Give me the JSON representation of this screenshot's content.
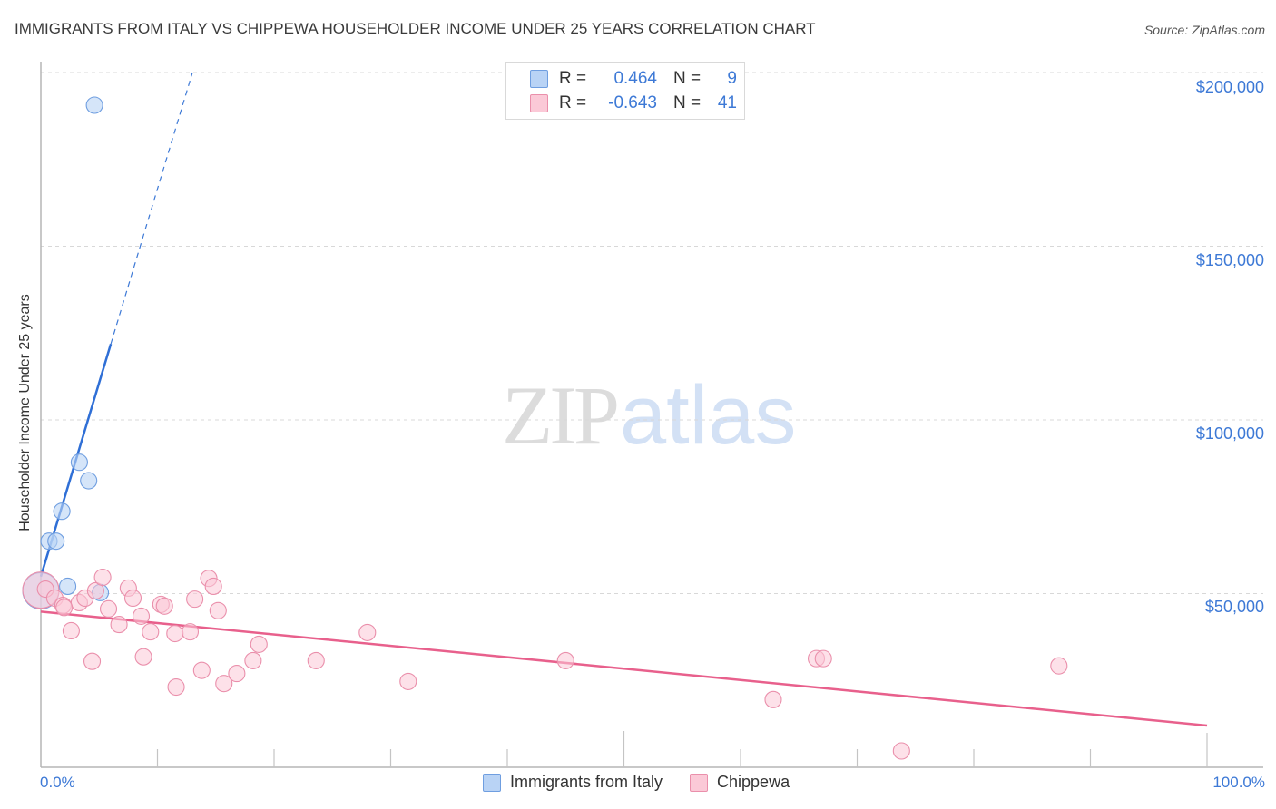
{
  "header": {
    "title": "IMMIGRANTS FROM ITALY VS CHIPPEWA HOUSEHOLDER INCOME UNDER 25 YEARS CORRELATION CHART",
    "source": "Source: ZipAtlas.com"
  },
  "watermark": {
    "zip": "ZIP",
    "atlas": "atlas"
  },
  "legend_top": {
    "rows": [
      {
        "swatch_color": "#b9d3f5",
        "swatch_border": "#6f9ee0",
        "r_label": "R =",
        "r_value": "0.464",
        "n_label": "N =",
        "n_value": "9"
      },
      {
        "swatch_color": "#fbc9d7",
        "swatch_border": "#ea8fab",
        "r_label": "R =",
        "r_value": "-0.643",
        "n_label": "N =",
        "n_value": "41"
      }
    ]
  },
  "legend_bottom": {
    "items": [
      {
        "label": "Immigrants from Italy",
        "swatch_color": "#b9d3f5",
        "swatch_border": "#6f9ee0"
      },
      {
        "label": "Chippewa",
        "swatch_color": "#fbc9d7",
        "swatch_border": "#ea8fab"
      }
    ]
  },
  "axes": {
    "ylabel": "Householder Income Under 25 years",
    "yticks": [
      "$200,000",
      "$150,000",
      "$100,000",
      "$50,000"
    ],
    "xlabel_min": "0.0%",
    "xlabel_max": "100.0%"
  },
  "colors": {
    "blue": "#3d79d6",
    "blue_fill": "#b9d3f5",
    "pink": "#e8608c",
    "pink_fill": "#fbc9d7",
    "axis_text": "#3d79d6",
    "grid": "#d8d8d8"
  },
  "chart_data": {
    "type": "scatter",
    "title": "IMMIGRANTS FROM ITALY VS CHIPPEWA HOUSEHOLDER INCOME UNDER 25 YEARS CORRELATION CHART",
    "xlabel": "",
    "ylabel": "Householder Income Under 25 years",
    "xlim": [
      0,
      100
    ],
    "ylim": [
      0,
      205000
    ],
    "x_unit": "%",
    "y_ticks": [
      50000,
      100000,
      150000,
      200000
    ],
    "x_tick_labels": [
      "0.0%",
      "100.0%"
    ],
    "grid": true,
    "legend_position": "bottom-center",
    "series": [
      {
        "name": "Immigrants from Italy",
        "color": "#6f9ee0",
        "R": 0.464,
        "N": 9,
        "points": [
          {
            "x": 4.6,
            "y": 190600
          },
          {
            "x": 3.3,
            "y": 87800
          },
          {
            "x": 4.1,
            "y": 82500
          },
          {
            "x": 1.8,
            "y": 73700
          },
          {
            "x": 0.7,
            "y": 65100
          },
          {
            "x": 1.3,
            "y": 65100
          },
          {
            "x": 2.3,
            "y": 52100
          },
          {
            "x": 5.1,
            "y": 50300
          },
          {
            "x": 0.0,
            "y": 50800,
            "large": true
          }
        ],
        "trend": {
          "x0": 0,
          "y0": 54900,
          "x1": 13.0,
          "y1": 200000,
          "solid_until_x": 6.0
        }
      },
      {
        "name": "Chippewa",
        "color": "#ea8fab",
        "R": -0.643,
        "N": 41,
        "points": [
          {
            "x": 0.0,
            "y": 51000,
            "large": true
          },
          {
            "x": 0.4,
            "y": 51300
          },
          {
            "x": 1.2,
            "y": 48700
          },
          {
            "x": 1.9,
            "y": 46600
          },
          {
            "x": 2.6,
            "y": 39300
          },
          {
            "x": 3.3,
            "y": 47400
          },
          {
            "x": 3.8,
            "y": 48700
          },
          {
            "x": 4.4,
            "y": 30500
          },
          {
            "x": 4.7,
            "y": 50800
          },
          {
            "x": 5.3,
            "y": 54700
          },
          {
            "x": 5.8,
            "y": 45600
          },
          {
            "x": 6.7,
            "y": 41100
          },
          {
            "x": 7.5,
            "y": 51600
          },
          {
            "x": 7.9,
            "y": 48700
          },
          {
            "x": 8.6,
            "y": 43500
          },
          {
            "x": 8.8,
            "y": 31800
          },
          {
            "x": 9.4,
            "y": 39000
          },
          {
            "x": 10.3,
            "y": 46900
          },
          {
            "x": 10.6,
            "y": 46400
          },
          {
            "x": 11.5,
            "y": 38500
          },
          {
            "x": 11.6,
            "y": 23100
          },
          {
            "x": 12.8,
            "y": 39000
          },
          {
            "x": 13.2,
            "y": 48400
          },
          {
            "x": 13.8,
            "y": 27900
          },
          {
            "x": 14.4,
            "y": 54400
          },
          {
            "x": 14.8,
            "y": 52100
          },
          {
            "x": 15.2,
            "y": 45100
          },
          {
            "x": 15.7,
            "y": 24100
          },
          {
            "x": 16.8,
            "y": 27000
          },
          {
            "x": 18.2,
            "y": 30700
          },
          {
            "x": 18.7,
            "y": 35400
          },
          {
            "x": 23.6,
            "y": 30700
          },
          {
            "x": 28.0,
            "y": 38800
          },
          {
            "x": 31.5,
            "y": 24700
          },
          {
            "x": 45.0,
            "y": 30700
          },
          {
            "x": 62.8,
            "y": 19500
          },
          {
            "x": 66.5,
            "y": 31300
          },
          {
            "x": 67.1,
            "y": 31300
          },
          {
            "x": 73.8,
            "y": 4700
          },
          {
            "x": 87.3,
            "y": 29200
          },
          {
            "x": 2.0,
            "y": 46000
          }
        ],
        "trend": {
          "x0": 0,
          "y0": 44800,
          "x1": 100,
          "y1": 12000
        }
      }
    ]
  }
}
